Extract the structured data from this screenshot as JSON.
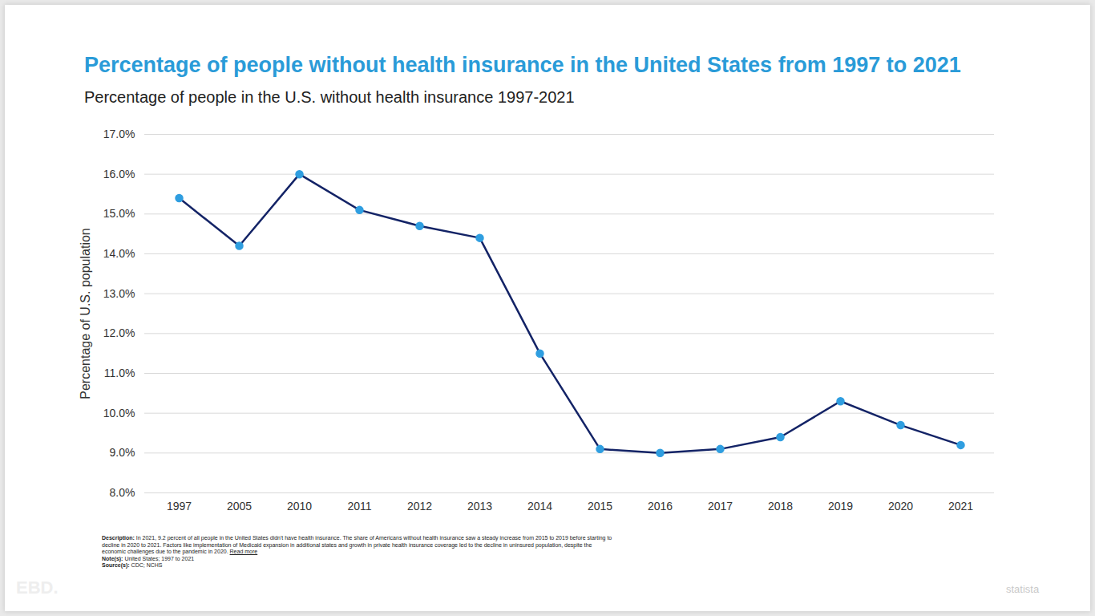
{
  "chart_data": {
    "type": "line",
    "title": "Percentage of people without health insurance in the United States from 1997 to 2021",
    "subtitle": "Percentage of people in the U.S. without health insurance 1997-2021",
    "y_label": "Percentage of U.S. population",
    "categories": [
      "1997",
      "2005",
      "2010",
      "2011",
      "2012",
      "2013",
      "2014",
      "2015",
      "2016",
      "2017",
      "2018",
      "2019",
      "2020",
      "2021"
    ],
    "values": [
      15.4,
      14.2,
      16.0,
      15.1,
      14.7,
      14.4,
      11.5,
      9.1,
      9.0,
      9.1,
      9.4,
      10.3,
      9.7,
      9.2
    ],
    "color": "#132366",
    "marker": "circle",
    "ylim": [
      8,
      17
    ],
    "yticks": [
      {
        "value": 8,
        "label": "8.0%"
      },
      {
        "value": 9,
        "label": "9.0%"
      },
      {
        "value": 10,
        "label": "10.0%"
      },
      {
        "value": 11,
        "label": "11.0%"
      },
      {
        "value": 12,
        "label": "12.0%"
      },
      {
        "value": 13,
        "label": "13.0%"
      },
      {
        "value": 14,
        "label": "14.0%"
      },
      {
        "value": 15,
        "label": "15.0%"
      },
      {
        "value": 16,
        "label": "16.0%"
      },
      {
        "value": 17,
        "label": "17.0%"
      }
    ],
    "grid": true,
    "footnotes": [
      {
        "label": "Description:",
        "text": "In 2021, 9.2 percent of all people in the United States didn't have health insurance. The share of Americans without health insurance saw a steady increase from 2015 to 2019 before starting to decline in 2020 to 2021. Factors like implementation of Medicaid expansion in additional states and growth in private health insurance coverage led to the decline in uninsured population, despite the economic challenges due to the pandemic in 2020.",
        "link": "Read more"
      },
      {
        "label": "Note(s):",
        "text": "United States; 1997 to 2021"
      },
      {
        "label": "Source(s):",
        "text": "CDC; NCHS"
      }
    ],
    "branding": [
      "EBD.",
      "statista"
    ]
  }
}
